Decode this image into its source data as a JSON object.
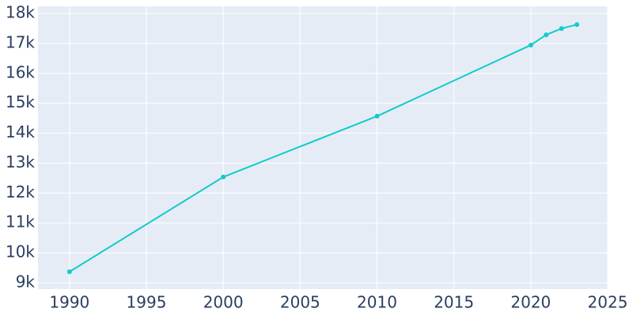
{
  "chart_data": {
    "type": "line",
    "x": [
      1990,
      2000,
      2010,
      2020,
      2021,
      2022,
      2023
    ],
    "series": [
      {
        "color": "#13cbcb",
        "values": [
          9369,
          12536,
          14567,
          16942,
          17285,
          17496,
          17628
        ]
      }
    ],
    "xlim": [
      1987.95,
      2025
    ],
    "xticks": [
      1990,
      1995,
      2000,
      2005,
      2010,
      2015,
      2020,
      2025
    ],
    "ylim": [
      8789,
      18237
    ],
    "yticks": [
      {
        "value": 9000,
        "label": "9k"
      },
      {
        "value": 10000,
        "label": "10k"
      },
      {
        "value": 11000,
        "label": "11k"
      },
      {
        "value": 12000,
        "label": "12k"
      },
      {
        "value": 13000,
        "label": "13k"
      },
      {
        "value": 14000,
        "label": "14k"
      },
      {
        "value": 15000,
        "label": "15k"
      },
      {
        "value": 16000,
        "label": "16k"
      },
      {
        "value": 17000,
        "label": "17k"
      },
      {
        "value": 18000,
        "label": "18k"
      }
    ],
    "grid": true,
    "background": "#e5ecf6"
  }
}
